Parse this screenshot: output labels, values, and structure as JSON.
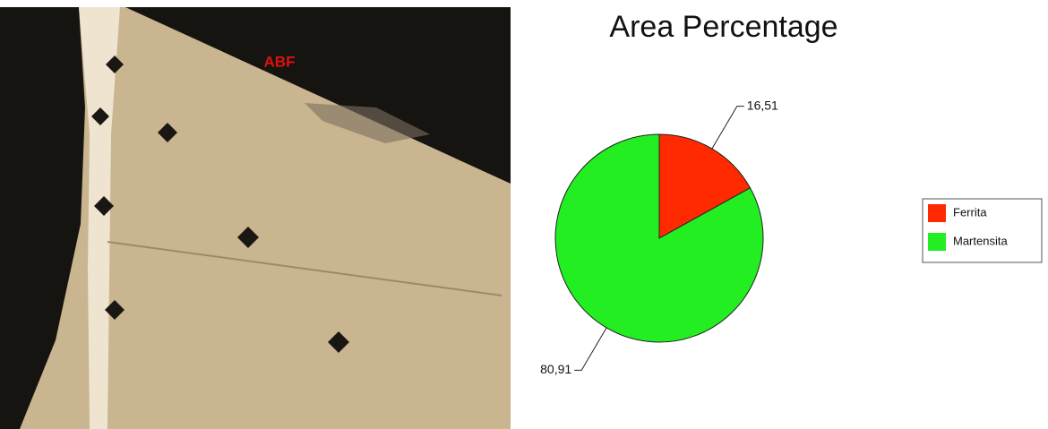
{
  "image": {
    "label": "ABF"
  },
  "chart_data": {
    "type": "pie",
    "title": "Area Percentage",
    "categories": [
      "Ferrita",
      "Martensita"
    ],
    "values": [
      16.51,
      80.91
    ],
    "value_labels": [
      "16,51",
      "80,91"
    ],
    "colors": [
      "#ff2a00",
      "#22ee22"
    ],
    "legend": "right"
  }
}
